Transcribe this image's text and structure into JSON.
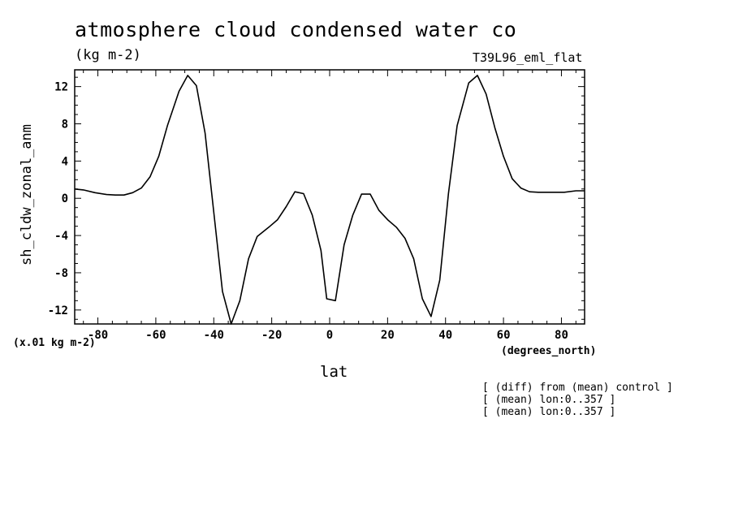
{
  "chart_data": {
    "type": "line",
    "title": "atmosphere cloud condensed water co",
    "subtitle": "(kg m-2)",
    "run_label": "T39L96_eml_flat",
    "xlabel": "lat",
    "x_units": "(degrees_north)",
    "ylabel": "sh_cldw_zonal_anm",
    "y_scale_note": "(x.01 kg m-2)",
    "xlim": [
      -88,
      88
    ],
    "ylim": [
      -13.5,
      13.8
    ],
    "x_ticks": [
      -80,
      -60,
      -40,
      -20,
      0,
      20,
      40,
      60,
      80
    ],
    "x_tick_labels": [
      "-80",
      "-60",
      "-40",
      "-20",
      "0",
      "20",
      "40",
      "60",
      "80"
    ],
    "y_ticks": [
      -12,
      -8,
      -4,
      0,
      4,
      8,
      12
    ],
    "y_tick_labels": [
      "-12",
      "-8",
      "-4",
      "0",
      "4",
      "8",
      "12"
    ],
    "grid": false,
    "series": [
      {
        "x": [
          -88,
          -85,
          -81,
          -77,
          -74,
          -71,
          -68,
          -65,
          -62,
          -59,
          -56,
          -52,
          -49,
          -46,
          -43,
          -40,
          -37,
          -34,
          -31,
          -28,
          -25,
          -21,
          -18,
          -15,
          -12,
          -9,
          -6,
          -3,
          -1,
          2,
          5,
          8,
          11,
          14,
          17,
          20,
          23,
          26,
          29,
          32,
          35,
          38,
          41,
          44,
          48,
          51,
          54,
          57,
          60,
          63,
          66,
          69,
          72,
          77,
          81,
          85,
          88
        ],
        "y": [
          1.0,
          0.9,
          0.6,
          0.4,
          0.35,
          0.35,
          0.6,
          1.1,
          2.3,
          4.5,
          7.8,
          11.5,
          13.2,
          12.1,
          7.0,
          -1.5,
          -10.0,
          -13.5,
          -11.0,
          -6.5,
          -4.1,
          -3.1,
          -2.3,
          -0.9,
          0.7,
          0.5,
          -1.8,
          -5.6,
          -10.8,
          -11.0,
          -5.0,
          -1.8,
          0.45,
          0.45,
          -1.3,
          -2.3,
          -3.1,
          -4.3,
          -6.5,
          -10.8,
          -12.7,
          -8.8,
          0.5,
          7.8,
          12.4,
          13.2,
          11.2,
          7.6,
          4.5,
          2.1,
          1.1,
          0.7,
          0.65,
          0.65,
          0.65,
          0.8,
          0.8
        ]
      }
    ],
    "notes": [
      "[ (diff) from (mean) control ]",
      "[ (mean) lon:0..357 ]",
      "[ (mean) lon:0..357 ]"
    ]
  }
}
